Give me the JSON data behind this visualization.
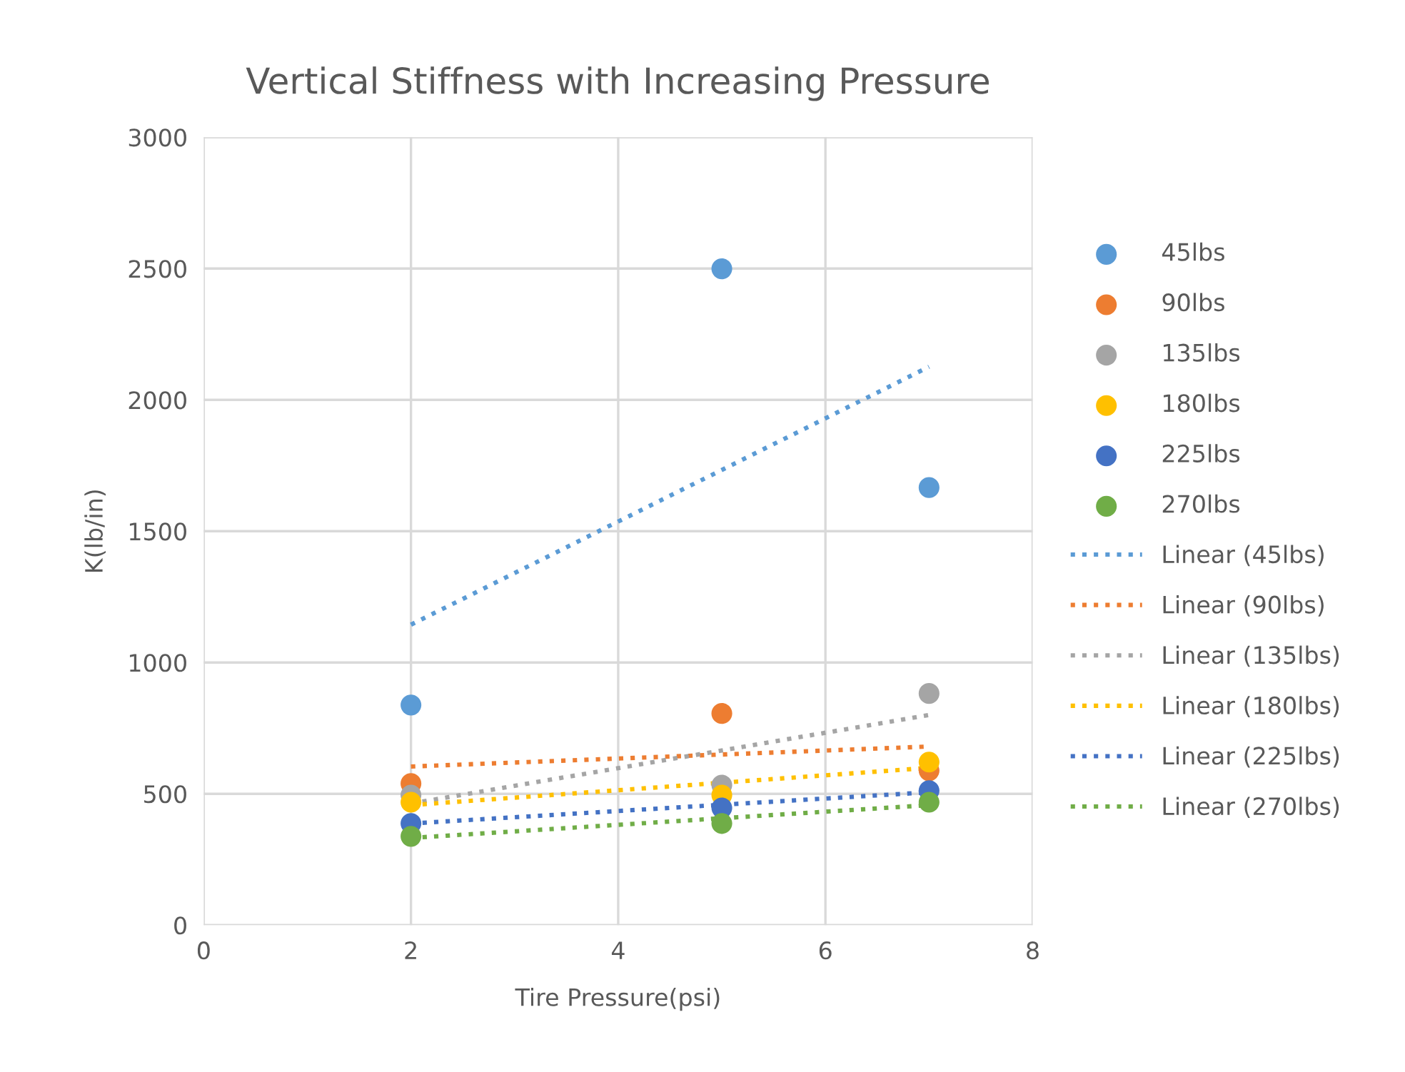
{
  "chart_data": {
    "type": "scatter",
    "title": "Vertical Stiffness with Increasing Pressure",
    "xlabel": "Tire Pressure(psi)",
    "ylabel": "K(lb/in)",
    "xlim": [
      0,
      8
    ],
    "xticks": [
      0,
      2,
      4,
      6,
      8
    ],
    "ylim": [
      0,
      3000
    ],
    "yticks": [
      0,
      500,
      1000,
      1500,
      2000,
      2500,
      3000
    ],
    "grid": true,
    "legend": "right",
    "marker": "circle",
    "series": [
      {
        "name": "45lbs",
        "color": "#5b9bd5",
        "x": [
          2,
          5,
          7
        ],
        "values": [
          838,
          2499,
          1666
        ]
      },
      {
        "name": "90lbs",
        "color": "#ed7d31",
        "x": [
          2,
          5,
          7
        ],
        "values": [
          539,
          806,
          588
        ]
      },
      {
        "name": "135lbs",
        "color": "#a5a5a5",
        "x": [
          2,
          5,
          7
        ],
        "values": [
          495,
          533,
          882
        ]
      },
      {
        "name": "180lbs",
        "color": "#ffc000",
        "x": [
          2,
          5,
          7
        ],
        "values": [
          468,
          495,
          621
        ]
      },
      {
        "name": "225lbs",
        "color": "#4472c4",
        "x": [
          2,
          5,
          7
        ],
        "values": [
          387,
          446,
          512
        ]
      },
      {
        "name": "270lbs",
        "color": "#70ad47",
        "x": [
          2,
          5,
          7
        ],
        "values": [
          338,
          387,
          468
        ]
      },
      {
        "name": "Linear (45lbs)",
        "type": "line",
        "marker": "none",
        "line_style": "dotted",
        "color": "#5b9bd5",
        "x": [
          2,
          7
        ],
        "values": [
          1144,
          2126
        ]
      },
      {
        "name": "Linear (90lbs)",
        "type": "line",
        "marker": "none",
        "line_style": "dotted",
        "color": "#ed7d31",
        "x": [
          2,
          7
        ],
        "values": [
          604,
          680
        ]
      },
      {
        "name": "Linear (135lbs)",
        "type": "line",
        "marker": "none",
        "line_style": "dotted",
        "color": "#a5a5a5",
        "x": [
          2,
          7
        ],
        "values": [
          463,
          800
        ]
      },
      {
        "name": "Linear (180lbs)",
        "type": "line",
        "marker": "none",
        "line_style": "dotted",
        "color": "#ffc000",
        "x": [
          2,
          7
        ],
        "values": [
          457,
          599
        ]
      },
      {
        "name": "Linear (225lbs)",
        "type": "line",
        "marker": "none",
        "line_style": "dotted",
        "color": "#4472c4",
        "x": [
          2,
          7
        ],
        "values": [
          387,
          506
        ]
      },
      {
        "name": "Linear (270lbs)",
        "type": "line",
        "marker": "none",
        "line_style": "dotted",
        "color": "#70ad47",
        "x": [
          2,
          7
        ],
        "values": [
          332,
          457
        ]
      }
    ]
  }
}
